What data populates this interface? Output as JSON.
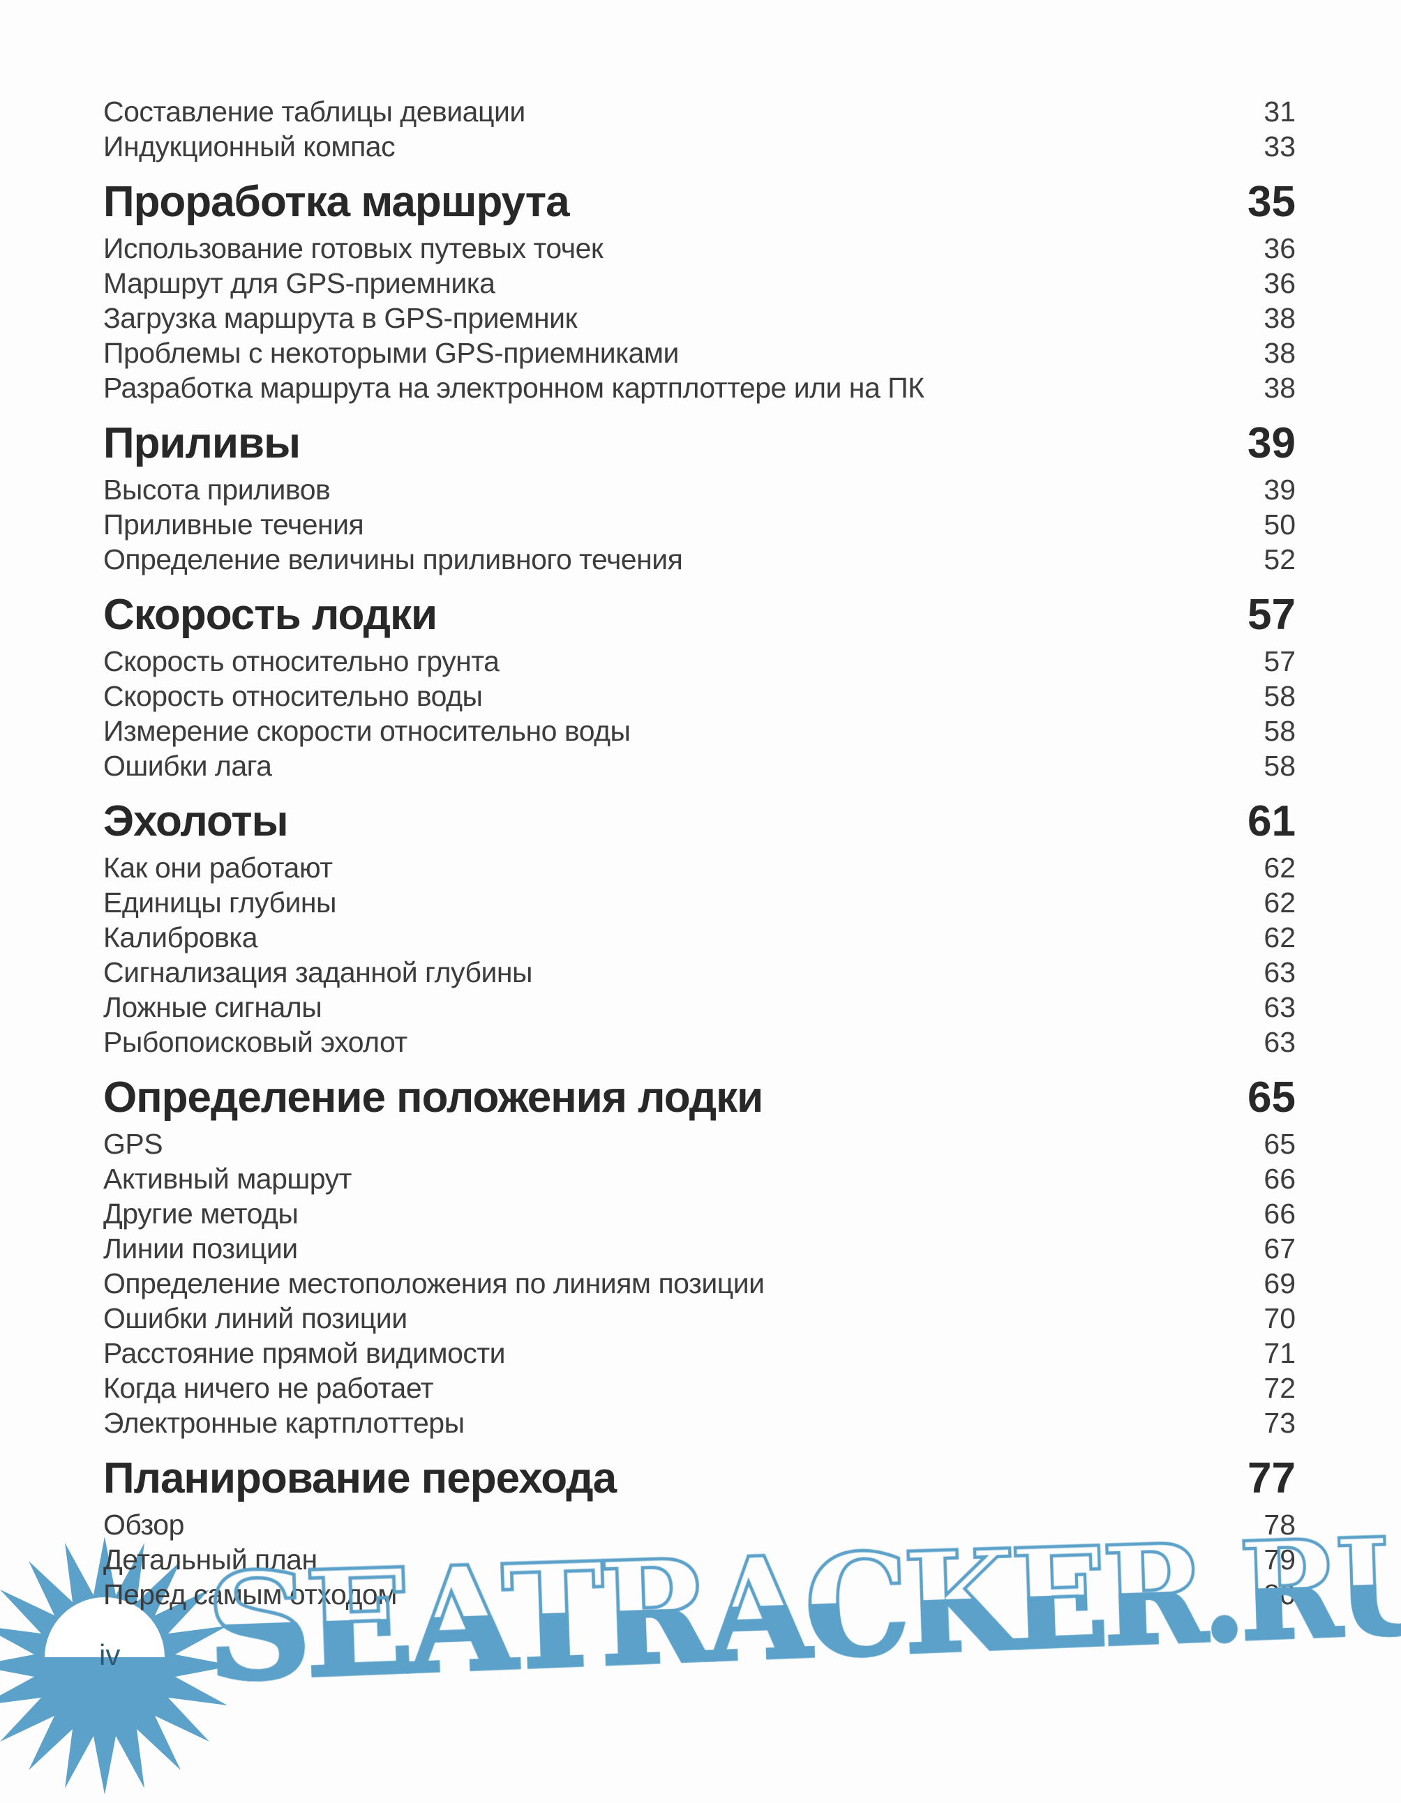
{
  "toc": {
    "intro_entries": [
      {
        "label": "Составление таблицы девиации",
        "page": "31"
      },
      {
        "label": "Индукционный компас",
        "page": "33"
      }
    ],
    "sections": [
      {
        "title": "Проработка маршрута",
        "page": "35",
        "entries": [
          {
            "label": "Использование готовых путевых точек",
            "page": "36"
          },
          {
            "label": "Маршрут для GPS-приемника",
            "page": "36"
          },
          {
            "label": "Загрузка маршрута в GPS-приемник",
            "page": "38"
          },
          {
            "label": "Проблемы с некоторыми GPS-приемниками",
            "page": "38"
          },
          {
            "label": "Разработка маршрута на электронном картплоттере или на ПК",
            "page": "38"
          }
        ]
      },
      {
        "title": "Приливы",
        "page": "39",
        "entries": [
          {
            "label": "Высота приливов",
            "page": "39"
          },
          {
            "label": "Приливные течения",
            "page": "50"
          },
          {
            "label": "Определение величины приливного течения",
            "page": "52"
          }
        ]
      },
      {
        "title": "Скорость лодки",
        "page": "57",
        "entries": [
          {
            "label": "Скорость относительно грунта",
            "page": "57"
          },
          {
            "label": "Скорость относительно воды",
            "page": "58"
          },
          {
            "label": "Измерение скорости относительно воды",
            "page": "58"
          },
          {
            "label": "Ошибки лага",
            "page": "58"
          }
        ]
      },
      {
        "title": "Эхолоты",
        "page": "61",
        "entries": [
          {
            "label": "Как они работают",
            "page": "62"
          },
          {
            "label": "Единицы глубины",
            "page": "62"
          },
          {
            "label": "Калибровка",
            "page": "62"
          },
          {
            "label": "Сигнализация заданной глубины",
            "page": "63"
          },
          {
            "label": "Ложные сигналы",
            "page": "63"
          },
          {
            "label": "Рыбопоисковый эхолот",
            "page": "63"
          }
        ]
      },
      {
        "title": "Определение положения лодки",
        "page": "65",
        "entries": [
          {
            "label": "GPS",
            "page": "65"
          },
          {
            "label": "Активный маршрут",
            "page": "66"
          },
          {
            "label": "Другие методы",
            "page": "66"
          },
          {
            "label": "Линии позиции",
            "page": "67"
          },
          {
            "label": "Определение местоположения по линиям позиции",
            "page": "69"
          },
          {
            "label": "Ошибки линий позиции",
            "page": "70"
          },
          {
            "label": "Расстояние прямой видимости",
            "page": "71"
          },
          {
            "label": "Когда ничего не работает",
            "page": "72"
          },
          {
            "label": "Электронные картплоттеры",
            "page": "73"
          }
        ]
      },
      {
        "title": "Планирование перехода",
        "page": "77",
        "entries": [
          {
            "label": "Обзор",
            "page": "78"
          },
          {
            "label": "Детальный план",
            "page": "79"
          },
          {
            "label": "Перед самым отходом",
            "page": "80"
          }
        ]
      }
    ]
  },
  "watermark": {
    "text": "SEATRACKER.RU",
    "color": "#5ba1c9"
  },
  "footer": {
    "page_number": "iv"
  }
}
